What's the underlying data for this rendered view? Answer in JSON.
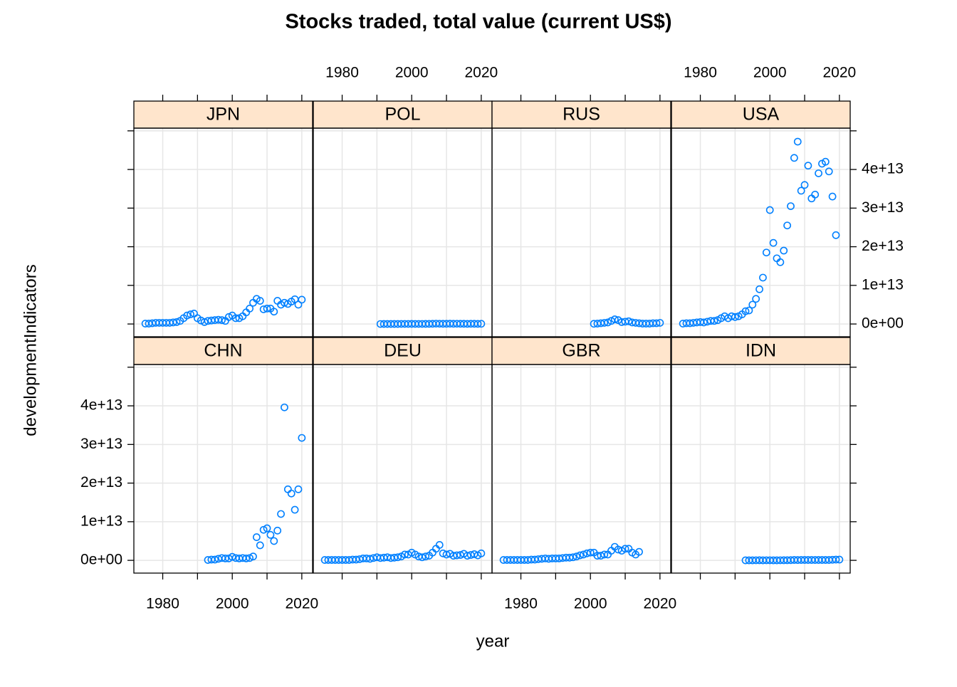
{
  "chart_data": {
    "type": "scatter",
    "title": "Stocks traded, total value (current US$)",
    "x_label": "year",
    "y_label": "developmentIndicators",
    "color": "#0080ff",
    "strip_color": "#ffe5cc",
    "grid": true,
    "xlim": [
      1971.7,
      2023.1
    ],
    "ylim": [
      -3300000000000.0,
      50700000000000.0
    ],
    "xticks": [
      1980,
      {
        "value": 1990,
        "label": null
      },
      2000,
      {
        "value": 2010,
        "label": null
      },
      2020
    ],
    "yticks": [
      {
        "value": 0,
        "label": "0e+00"
      },
      {
        "value": 10000000000000.0,
        "label": "1e+13"
      },
      {
        "value": 20000000000000.0,
        "label": "2e+13"
      },
      {
        "value": 30000000000000.0,
        "label": "3e+13"
      },
      {
        "value": 40000000000000.0,
        "label": "4e+13"
      },
      {
        "value": 50000000000000.0,
        "label": null
      }
    ],
    "panels": [
      {
        "name": "JPN",
        "x": [
          1975,
          1976,
          1977,
          1978,
          1979,
          1980,
          1981,
          1982,
          1983,
          1984,
          1985,
          1986,
          1987,
          1988,
          1989,
          1990,
          1991,
          1992,
          1993,
          1994,
          1995,
          1996,
          1997,
          1998,
          1999,
          2000,
          2001,
          2002,
          2003,
          2004,
          2005,
          2006,
          2007,
          2008,
          2009,
          2010,
          2011,
          2012,
          2013,
          2014,
          2015,
          2016,
          2017,
          2018,
          2019,
          2020
        ],
        "values": [
          100000000000.0,
          100000000000.0,
          200000000000.0,
          300000000000.0,
          300000000000.0,
          300000000000.0,
          300000000000.0,
          300000000000.0,
          400000000000.0,
          500000000000.0,
          800000000000.0,
          1500000000000.0,
          2200000000000.0,
          2500000000000.0,
          2700000000000.0,
          1500000000000.0,
          900000000000.0,
          500000000000.0,
          800000000000.0,
          900000000000.0,
          1000000000000.0,
          1100000000000.0,
          1000000000000.0,
          800000000000.0,
          1800000000000.0,
          2200000000000.0,
          1500000000000.0,
          1500000000000.0,
          2000000000000.0,
          3000000000000.0,
          4000000000000.0,
          5500000000000.0,
          6500000000000.0,
          6000000000000.0,
          3800000000000.0,
          4000000000000.0,
          4000000000000.0,
          3200000000000.0,
          6000000000000.0,
          5000000000000.0,
          5500000000000.0,
          5200000000000.0,
          5800000000000.0,
          6400000000000.0,
          5000000000000.0,
          6300000000000.0
        ]
      },
      {
        "name": "POL",
        "x": [
          1991,
          1992,
          1993,
          1994,
          1995,
          1996,
          1997,
          1998,
          1999,
          2000,
          2001,
          2002,
          2003,
          2004,
          2005,
          2006,
          2007,
          2008,
          2009,
          2010,
          2011,
          2012,
          2013,
          2014,
          2015,
          2016,
          2017,
          2018,
          2019,
          2020
        ],
        "values": [
          1000000000.0,
          2000000000.0,
          5000000000.0,
          10000000000.0,
          10000000000.0,
          10000000000.0,
          20000000000.0,
          20000000000.0,
          20000000000.0,
          30000000000.0,
          20000000000.0,
          20000000000.0,
          20000000000.0,
          30000000000.0,
          40000000000.0,
          60000000000.0,
          90000000000.0,
          70000000000.0,
          50000000000.0,
          60000000000.0,
          80000000000.0,
          60000000000.0,
          70000000000.0,
          60000000000.0,
          50000000000.0,
          40000000000.0,
          60000000000.0,
          50000000000.0,
          40000000000.0,
          60000000000.0
        ]
      },
      {
        "name": "RUS",
        "x": [
          2001,
          2002,
          2003,
          2004,
          2005,
          2006,
          2007,
          2008,
          2009,
          2010,
          2011,
          2012,
          2013,
          2014,
          2015,
          2016,
          2017,
          2018,
          2019,
          2020
        ],
        "values": [
          50000000000.0,
          100000000000.0,
          200000000000.0,
          300000000000.0,
          400000000000.0,
          800000000000.0,
          1200000000000.0,
          1000000000000.0,
          500000000000.0,
          600000000000.0,
          700000000000.0,
          400000000000.0,
          300000000000.0,
          200000000000.0,
          100000000000.0,
          100000000000.0,
          100000000000.0,
          200000000000.0,
          200000000000.0,
          300000000000.0
        ]
      },
      {
        "name": "USA",
        "x": [
          1975,
          1976,
          1977,
          1978,
          1979,
          1980,
          1981,
          1982,
          1983,
          1984,
          1985,
          1986,
          1987,
          1988,
          1989,
          1990,
          1991,
          1992,
          1993,
          1994,
          1995,
          1996,
          1997,
          1998,
          1999,
          2000,
          2001,
          2002,
          2003,
          2004,
          2005,
          2006,
          2007,
          2008,
          2009,
          2010,
          2011,
          2012,
          2013,
          2014,
          2015,
          2016,
          2017,
          2018,
          2019
        ],
        "values": [
          100000000000.0,
          200000000000.0,
          200000000000.0,
          300000000000.0,
          400000000000.0,
          500000000000.0,
          400000000000.0,
          600000000000.0,
          800000000000.0,
          800000000000.0,
          1000000000000.0,
          1500000000000.0,
          2000000000000.0,
          1500000000000.0,
          2000000000000.0,
          1800000000000.0,
          2000000000000.0,
          2500000000000.0,
          3300000000000.0,
          3500000000000.0,
          5000000000000.0,
          6500000000000.0,
          9000000000000.0,
          12000000000000.0,
          18500000000000.0,
          29500000000000.0,
          21000000000000.0,
          17000000000000.0,
          16000000000000.0,
          19000000000000.0,
          25500000000000.0,
          30500000000000.0,
          43000000000000.0,
          47200000000000.0,
          34500000000000.0,
          36000000000000.0,
          41000000000000.0,
          32500000000000.0,
          33500000000000.0,
          39000000000000.0,
          41500000000000.0,
          42000000000000.0,
          39500000000000.0,
          33000000000000.0,
          23000000000000.0
        ]
      },
      {
        "name": "CHN",
        "x": [
          1993,
          1994,
          1995,
          1996,
          1997,
          1998,
          1999,
          2000,
          2001,
          2002,
          2003,
          2004,
          2005,
          2006,
          2007,
          2008,
          2009,
          2010,
          2011,
          2012,
          2013,
          2014,
          2015,
          2016,
          2017,
          2018,
          2019,
          2020
        ],
        "values": [
          100000000000.0,
          200000000000.0,
          200000000000.0,
          400000000000.0,
          600000000000.0,
          500000000000.0,
          500000000000.0,
          900000000000.0,
          600000000000.0,
          500000000000.0,
          600000000000.0,
          500000000000.0,
          600000000000.0,
          1000000000000.0,
          6000000000000.0,
          3900000000000.0,
          7900000000000.0,
          8300000000000.0,
          6600000000000.0,
          5000000000000.0,
          7700000000000.0,
          12000000000000.0,
          39600000000000.0,
          18400000000000.0,
          17300000000000.0,
          13100000000000.0,
          18400000000000.0,
          31700000000000.0
        ]
      },
      {
        "name": "DEU",
        "x": [
          1975,
          1976,
          1977,
          1978,
          1979,
          1980,
          1981,
          1982,
          1983,
          1984,
          1985,
          1986,
          1987,
          1988,
          1989,
          1990,
          1991,
          1992,
          1993,
          1994,
          1995,
          1996,
          1997,
          1998,
          1999,
          2000,
          2001,
          2002,
          2003,
          2004,
          2005,
          2006,
          2007,
          2008,
          2009,
          2010,
          2011,
          2012,
          2013,
          2014,
          2015,
          2016,
          2017,
          2018,
          2019,
          2020
        ],
        "values": [
          100000000000.0,
          100000000000.0,
          100000000000.0,
          100000000000.0,
          100000000000.0,
          100000000000.0,
          100000000000.0,
          100000000000.0,
          200000000000.0,
          200000000000.0,
          300000000000.0,
          500000000000.0,
          500000000000.0,
          400000000000.0,
          600000000000.0,
          800000000000.0,
          600000000000.0,
          700000000000.0,
          800000000000.0,
          600000000000.0,
          700000000000.0,
          800000000000.0,
          1000000000000.0,
          1500000000000.0,
          1500000000000.0,
          2000000000000.0,
          1500000000000.0,
          1000000000000.0,
          800000000000.0,
          1000000000000.0,
          1200000000000.0,
          2000000000000.0,
          3000000000000.0,
          4000000000000.0,
          1800000000000.0,
          1500000000000.0,
          1700000000000.0,
          1200000000000.0,
          1300000000000.0,
          1400000000000.0,
          1700000000000.0,
          1200000000000.0,
          1400000000000.0,
          1600000000000.0,
          1300000000000.0,
          1800000000000.0
        ]
      },
      {
        "name": "GBR",
        "x": [
          1975,
          1976,
          1977,
          1978,
          1979,
          1980,
          1981,
          1982,
          1983,
          1984,
          1985,
          1986,
          1987,
          1988,
          1989,
          1990,
          1991,
          1992,
          1993,
          1994,
          1995,
          1996,
          1997,
          1998,
          1999,
          2000,
          2001,
          2002,
          2003,
          2004,
          2005,
          2006,
          2007,
          2008,
          2009,
          2010,
          2011,
          2012,
          2013,
          2014
        ],
        "values": [
          100000000000.0,
          100000000000.0,
          100000000000.0,
          100000000000.0,
          100000000000.0,
          100000000000.0,
          100000000000.0,
          100000000000.0,
          200000000000.0,
          200000000000.0,
          300000000000.0,
          400000000000.0,
          500000000000.0,
          400000000000.0,
          500000000000.0,
          500000000000.0,
          500000000000.0,
          600000000000.0,
          700000000000.0,
          700000000000.0,
          800000000000.0,
          1000000000000.0,
          1300000000000.0,
          1500000000000.0,
          1800000000000.0,
          2000000000000.0,
          2000000000000.0,
          1200000000000.0,
          1200000000000.0,
          1500000000000.0,
          1500000000000.0,
          2500000000000.0,
          3500000000000.0,
          2800000000000.0,
          2500000000000.0,
          3000000000000.0,
          3000000000000.0,
          2000000000000.0,
          1500000000000.0,
          2200000000000.0
        ]
      },
      {
        "name": "IDN",
        "x": [
          1993,
          1994,
          1995,
          1996,
          1997,
          1998,
          1999,
          2000,
          2001,
          2002,
          2003,
          2004,
          2005,
          2006,
          2007,
          2008,
          2009,
          2010,
          2011,
          2012,
          2013,
          2014,
          2015,
          2016,
          2017,
          2018,
          2019,
          2020
        ],
        "values": [
          10000000000.0,
          10000000000.0,
          10000000000.0,
          20000000000.0,
          30000000000.0,
          10000000000.0,
          20000000000.0,
          20000000000.0,
          10000000000.0,
          10000000000.0,
          20000000000.0,
          30000000000.0,
          40000000000.0,
          50000000000.0,
          100000000000.0,
          80000000000.0,
          100000000000.0,
          100000000000.0,
          100000000000.0,
          100000000000.0,
          100000000000.0,
          100000000000.0,
          100000000000.0,
          100000000000.0,
          100000000000.0,
          150000000000.0,
          200000000000.0,
          200000000000.0
        ]
      }
    ]
  }
}
